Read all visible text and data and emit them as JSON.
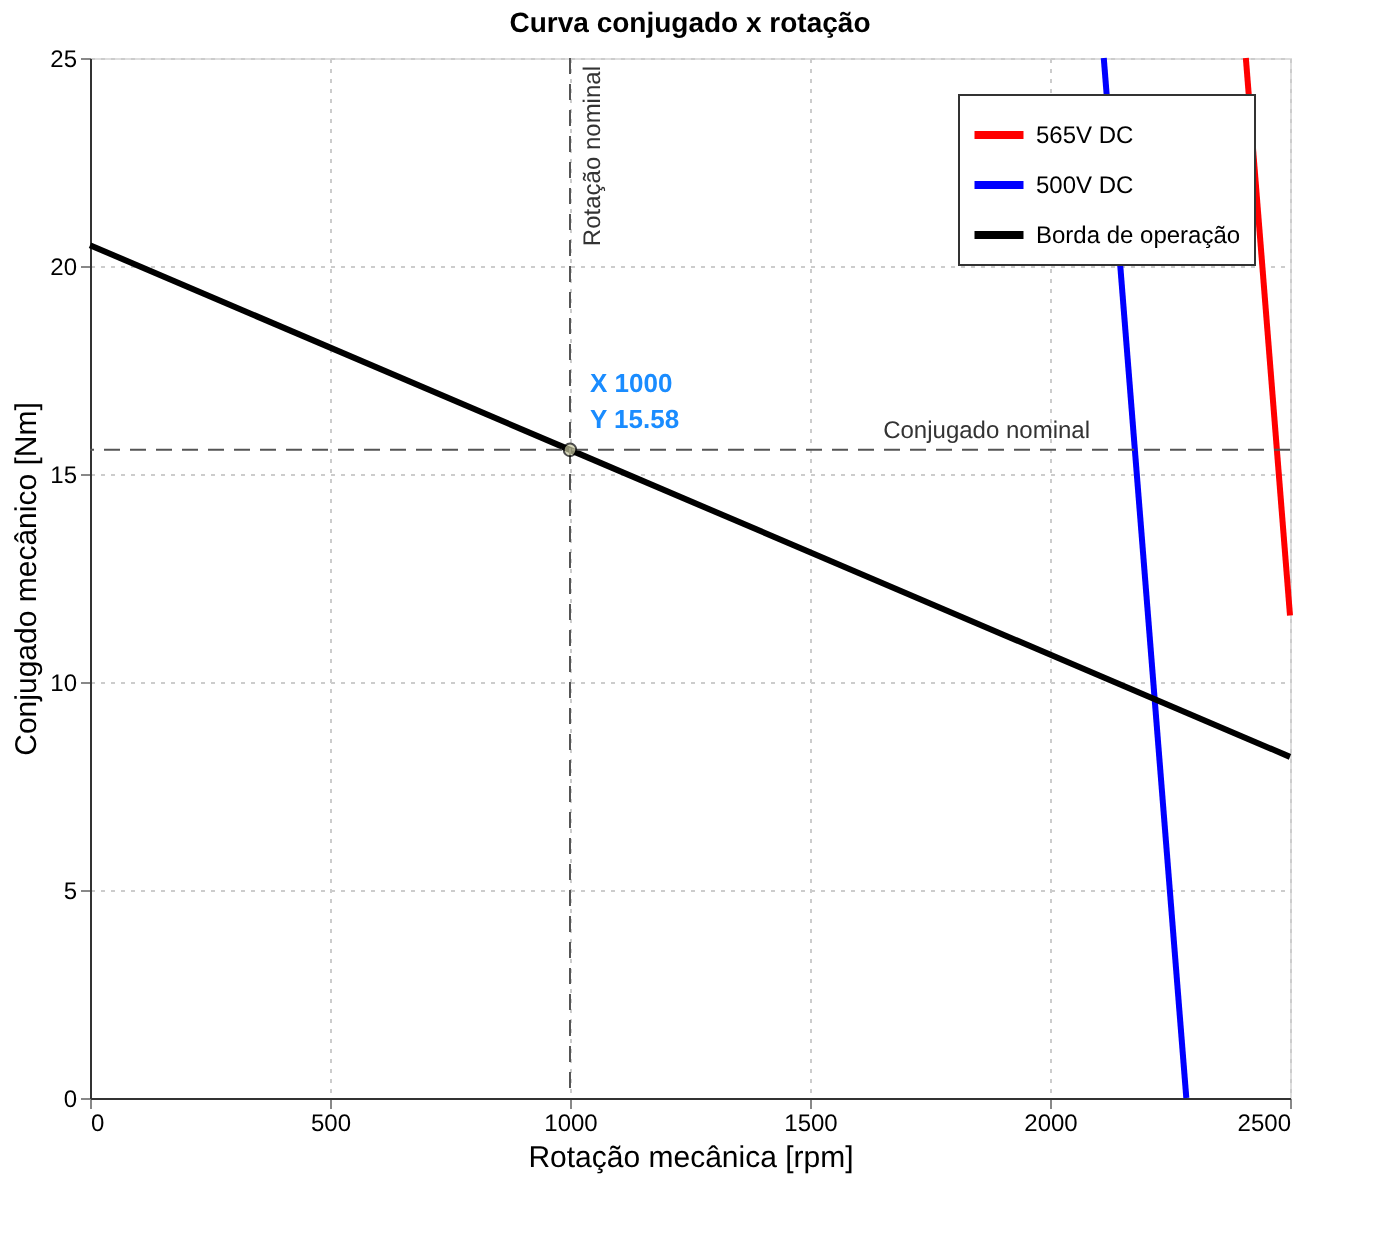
{
  "chart_data": {
    "type": "line",
    "title": "Curva conjugado x rotação",
    "xlabel": "Rotação mecânica [rpm]",
    "ylabel": "Conjugado mecânico [Nm]",
    "xlim": [
      0,
      2500
    ],
    "xticks": [
      0,
      500,
      1000,
      1500,
      2000,
      2500
    ],
    "ylim": [
      0,
      25
    ],
    "yticks": [
      0,
      5,
      10,
      15,
      20,
      25
    ],
    "series": [
      {
        "name": "565V DC",
        "color": "#ff0000",
        "x": [
          2408,
          2500
        ],
        "values": [
          25,
          11.6
        ]
      },
      {
        "name": "500V DC",
        "color": "#0000ff",
        "x": [
          2112,
          2284
        ],
        "values": [
          25,
          0
        ]
      },
      {
        "name": "Borda de operação",
        "color": "#000000",
        "x": [
          0,
          1000,
          2500
        ],
        "values": [
          20.5,
          15.58,
          8.2
        ]
      }
    ],
    "ref_lines": [
      {
        "axis": "x",
        "value": 1000,
        "label": "Rotação nominal",
        "color": "#555555",
        "line_style": "dashed"
      },
      {
        "axis": "y",
        "value": 15.58,
        "label": "Conjugado nominal",
        "color": "#555555",
        "line_style": "dashed"
      }
    ],
    "annotations": [
      {
        "text": "X 1000\nY 15.58",
        "x": 1000,
        "y": 15.58
      }
    ],
    "grid": true,
    "legend": "top right",
    "line_style": "solid",
    "marker": "none"
  }
}
